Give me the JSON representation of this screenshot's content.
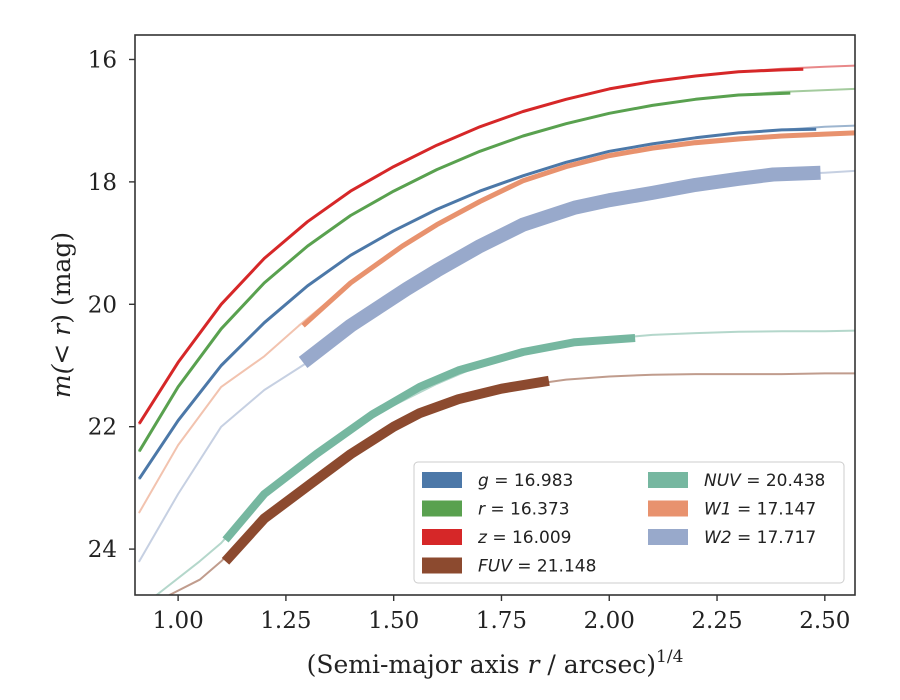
{
  "chart_data": {
    "type": "line",
    "xlabel_prefix": "(Semi-major axis ",
    "xlabel_var": "r",
    "xlabel_mid": " / arcsec)",
    "xlabel_sup": "1/4",
    "ylabel_prefix": "m(< ",
    "ylabel_var": "r",
    "ylabel_suffix": ") (mag)",
    "xlim": [
      0.9,
      2.57
    ],
    "ylim": [
      24.75,
      15.6
    ],
    "y_inverted": true,
    "xticks": [
      1.0,
      1.25,
      1.5,
      1.75,
      2.0,
      2.25,
      2.5
    ],
    "xtick_labels": [
      "1.00",
      "1.25",
      "1.50",
      "1.75",
      "2.00",
      "2.25",
      "2.50"
    ],
    "yticks": [
      16,
      18,
      20,
      22,
      24
    ],
    "ytick_labels": [
      "16",
      "18",
      "20",
      "22",
      "24"
    ],
    "grid": false,
    "legend_position": "lower-right",
    "series": [
      {
        "name": "g",
        "legend_label": "g = 16.983",
        "color": "#4c78a8",
        "band_width": 3,
        "model_x": [
          0.91,
          1.0,
          1.1,
          1.2,
          1.3,
          1.4,
          1.5,
          1.6,
          1.7,
          1.8,
          1.9,
          2.0,
          2.1,
          2.2,
          2.3,
          2.4,
          2.5,
          2.57
        ],
        "model_y": [
          22.85,
          21.9,
          21.0,
          20.3,
          19.7,
          19.2,
          18.8,
          18.45,
          18.15,
          17.9,
          17.68,
          17.5,
          17.38,
          17.28,
          17.2,
          17.15,
          17.1,
          17.08
        ],
        "data_x": [
          0.91,
          1.0,
          1.1,
          1.2,
          1.3,
          1.4,
          1.5,
          1.6,
          1.7,
          1.8,
          1.9,
          2.0,
          2.1,
          2.2,
          2.3,
          2.4,
          2.48
        ],
        "data_y": [
          22.85,
          21.9,
          21.0,
          20.3,
          19.7,
          19.2,
          18.8,
          18.45,
          18.15,
          17.9,
          17.68,
          17.5,
          17.38,
          17.28,
          17.2,
          17.15,
          17.14
        ]
      },
      {
        "name": "r",
        "legend_label": "r = 16.373",
        "color": "#59a14f",
        "band_width": 3,
        "model_x": [
          0.91,
          1.0,
          1.1,
          1.2,
          1.3,
          1.4,
          1.5,
          1.6,
          1.7,
          1.8,
          1.9,
          2.0,
          2.1,
          2.2,
          2.3,
          2.4,
          2.5,
          2.57
        ],
        "model_y": [
          22.4,
          21.35,
          20.4,
          19.65,
          19.05,
          18.55,
          18.15,
          17.8,
          17.5,
          17.25,
          17.05,
          16.88,
          16.75,
          16.65,
          16.58,
          16.53,
          16.5,
          16.48
        ],
        "data_x": [
          0.91,
          1.0,
          1.1,
          1.2,
          1.3,
          1.4,
          1.5,
          1.6,
          1.7,
          1.8,
          1.9,
          2.0,
          2.1,
          2.2,
          2.3,
          2.42
        ],
        "data_y": [
          22.4,
          21.35,
          20.4,
          19.65,
          19.05,
          18.55,
          18.15,
          17.8,
          17.5,
          17.25,
          17.05,
          16.88,
          16.75,
          16.65,
          16.58,
          16.55
        ]
      },
      {
        "name": "z",
        "legend_label": "z = 16.009",
        "color": "#d62728",
        "band_width": 3,
        "model_x": [
          0.91,
          1.0,
          1.1,
          1.2,
          1.3,
          1.4,
          1.5,
          1.6,
          1.7,
          1.8,
          1.9,
          2.0,
          2.1,
          2.2,
          2.3,
          2.4,
          2.5,
          2.57
        ],
        "model_y": [
          21.95,
          20.95,
          20.0,
          19.25,
          18.65,
          18.15,
          17.75,
          17.4,
          17.1,
          16.85,
          16.65,
          16.48,
          16.36,
          16.27,
          16.2,
          16.15,
          16.12,
          16.1
        ],
        "data_x": [
          0.91,
          1.0,
          1.1,
          1.2,
          1.3,
          1.4,
          1.5,
          1.6,
          1.7,
          1.8,
          1.9,
          2.0,
          2.1,
          2.2,
          2.3,
          2.4,
          2.45
        ],
        "data_y": [
          21.95,
          20.95,
          20.0,
          19.25,
          18.65,
          18.15,
          17.75,
          17.4,
          17.1,
          16.85,
          16.65,
          16.48,
          16.36,
          16.27,
          16.2,
          16.17,
          16.16
        ]
      },
      {
        "name": "FUV",
        "legend_label": "FUV = 21.148",
        "color": "#8c4a2f",
        "band_width": 10,
        "model_x": [
          0.98,
          1.05,
          1.1,
          1.2,
          1.3,
          1.4,
          1.5,
          1.6,
          1.7,
          1.8,
          1.9,
          2.0,
          2.1,
          2.2,
          2.3,
          2.4,
          2.5,
          2.57
        ],
        "model_y": [
          24.75,
          24.5,
          24.2,
          23.5,
          22.9,
          22.4,
          22.0,
          21.7,
          21.48,
          21.33,
          21.23,
          21.18,
          21.15,
          21.14,
          21.14,
          21.14,
          21.13,
          21.13
        ],
        "data_x": [
          1.11,
          1.2,
          1.31,
          1.4,
          1.5,
          1.56,
          1.65,
          1.75,
          1.86
        ],
        "data_y": [
          24.2,
          23.5,
          22.92,
          22.45,
          22.0,
          21.78,
          21.55,
          21.38,
          21.25
        ]
      },
      {
        "name": "NUV",
        "legend_label": "NUV = 20.438",
        "color": "#76b7a0",
        "band_width": 8,
        "model_x": [
          0.95,
          1.05,
          1.1,
          1.2,
          1.3,
          1.4,
          1.5,
          1.6,
          1.7,
          1.8,
          1.9,
          2.0,
          2.1,
          2.2,
          2.3,
          2.4,
          2.5,
          2.57
        ],
        "model_y": [
          24.75,
          24.2,
          23.9,
          23.1,
          22.5,
          22.05,
          21.65,
          21.3,
          21.0,
          20.8,
          20.65,
          20.56,
          20.5,
          20.47,
          20.45,
          20.44,
          20.44,
          20.43
        ],
        "data_x": [
          1.11,
          1.2,
          1.32,
          1.45,
          1.56,
          1.65,
          1.8,
          1.92,
          2.06
        ],
        "data_y": [
          23.85,
          23.1,
          22.45,
          21.8,
          21.35,
          21.08,
          20.78,
          20.62,
          20.55
        ]
      },
      {
        "name": "W1",
        "legend_label": "W1 = 17.147",
        "color": "#e8926e",
        "band_width": 5,
        "model_x": [
          0.91,
          1.0,
          1.1,
          1.2,
          1.28,
          1.4,
          1.5,
          1.6,
          1.7,
          1.8,
          1.9,
          2.0,
          2.1,
          2.2,
          2.3,
          2.4,
          2.5,
          2.57
        ],
        "model_y": [
          23.4,
          22.3,
          21.35,
          20.85,
          20.35,
          19.65,
          19.15,
          18.7,
          18.3,
          17.98,
          17.75,
          17.55,
          17.42,
          17.33,
          17.27,
          17.23,
          17.21,
          17.2
        ],
        "data_x": [
          1.29,
          1.4,
          1.52,
          1.6,
          1.7,
          1.8,
          1.9,
          2.0,
          2.1,
          2.2,
          2.3,
          2.4,
          2.5,
          2.57
        ],
        "data_y": [
          20.35,
          19.65,
          19.05,
          18.7,
          18.32,
          17.98,
          17.75,
          17.57,
          17.45,
          17.36,
          17.3,
          17.25,
          17.22,
          17.2
        ]
      },
      {
        "name": "W2",
        "legend_label": "W2 = 17.717",
        "color": "#98a9cb",
        "band_width": 14,
        "model_x": [
          0.91,
          1.0,
          1.1,
          1.2,
          1.3,
          1.4,
          1.5,
          1.6,
          1.7,
          1.8,
          1.9,
          2.0,
          2.1,
          2.2,
          2.3,
          2.4,
          2.5,
          2.57
        ],
        "model_y": [
          24.2,
          23.1,
          22.0,
          21.4,
          20.95,
          20.35,
          19.85,
          19.45,
          19.05,
          18.75,
          18.5,
          18.33,
          18.18,
          18.05,
          17.95,
          17.88,
          17.85,
          17.82
        ],
        "data_x": [
          1.29,
          1.4,
          1.53,
          1.6,
          1.7,
          1.8,
          1.92,
          2.0,
          2.1,
          2.2,
          2.3,
          2.38,
          2.49
        ],
        "data_y": [
          20.95,
          20.35,
          19.75,
          19.45,
          19.05,
          18.7,
          18.42,
          18.3,
          18.18,
          18.05,
          17.95,
          17.88,
          17.85
        ]
      }
    ],
    "legend_columns": [
      [
        "g",
        "r",
        "z",
        "FUV"
      ],
      [
        "NUV",
        "W1",
        "W2"
      ]
    ]
  }
}
